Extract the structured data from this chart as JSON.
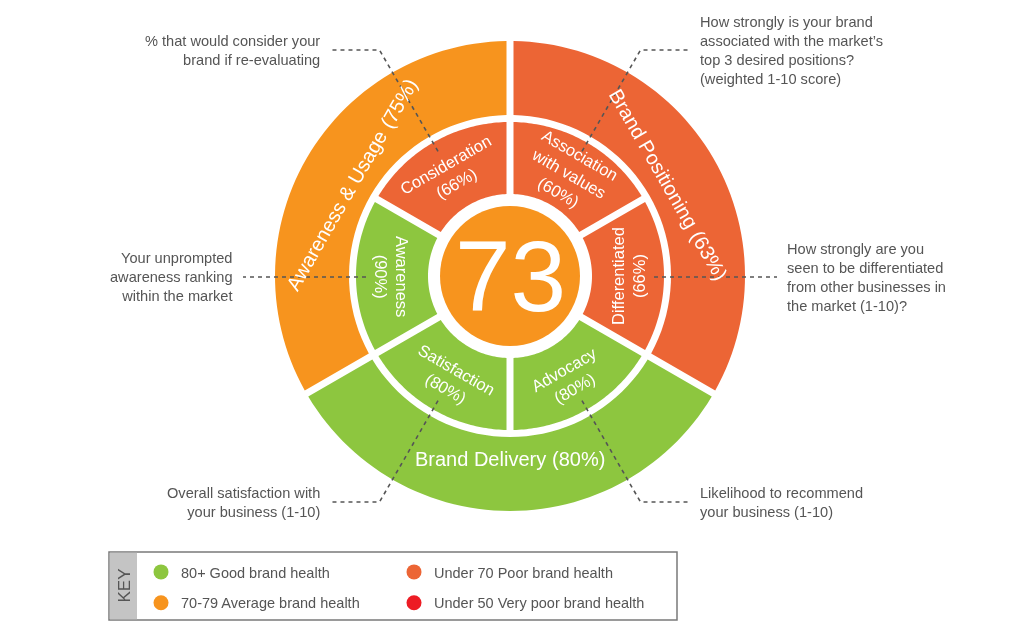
{
  "chart_data": {
    "type": "other",
    "title": "73",
    "categories": [
      "Consideration",
      "Association\nwith values",
      "Differentiated",
      "Advocacy",
      "Satisfaction",
      "Awareness",
      "Awareness & Usage",
      "Brand Positioning",
      "Brand Delivery"
    ],
    "series": [
      {
        "name": "80+ Good brand health",
        "color": "#8dc63f",
        "values": [
          null,
          null,
          null,
          80,
          80,
          90,
          null,
          null,
          80
        ],
        "value_labels": [
          null,
          null,
          null,
          "(80%)",
          "(80%)",
          "(90%)",
          null,
          null,
          "(80%)"
        ]
      },
      {
        "name": "70-79 Average brand health",
        "color": "#f7941e",
        "values": [
          null,
          null,
          null,
          null,
          null,
          null,
          75,
          null,
          null
        ],
        "value_labels": [
          null,
          null,
          null,
          null,
          null,
          null,
          "(75%)",
          null,
          null
        ]
      },
      {
        "name": "Under 70 Poor brand health",
        "color": "#ec6535",
        "values": [
          66,
          60,
          66,
          null,
          null,
          null,
          null,
          63,
          null
        ],
        "value_labels": [
          "(66%)",
          "(60%)",
          "(66%)",
          null,
          null,
          null,
          null,
          "(63%)",
          null
        ]
      },
      {
        "name": "Under 50 Very poor brand health",
        "color": "#ed1c24",
        "values": [
          null,
          null,
          null,
          null,
          null,
          null,
          null,
          null,
          null
        ]
      }
    ],
    "annotations": [
      "% that would consider your\nbrand if re-evaluating",
      "How strongly is your brand\nassociated with the market’s\ntop 3 desired positions?\n(weighted 1-10 score)",
      "How strongly are you\nseen to be differentiated\nfrom other businesses in\nthe market (1-10)?",
      "Likelihood to recommend\nyour business (1-10)",
      "Overall satisfaction with\nyour business (1-10)",
      "Your unprompted\nawareness ranking\nwithin the market"
    ],
    "legend": "bottom left",
    "legend_title": "KEY"
  }
}
